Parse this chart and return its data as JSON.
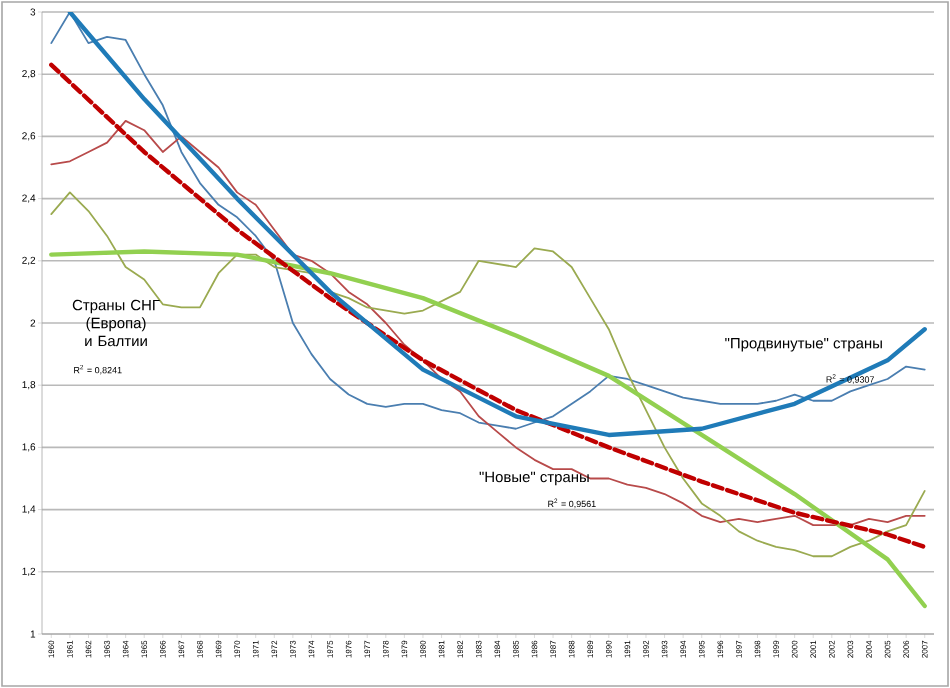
{
  "chart_data": {
    "type": "line",
    "x": [
      1960,
      1961,
      1962,
      1963,
      1964,
      1965,
      1966,
      1967,
      1968,
      1969,
      1970,
      1971,
      1972,
      1973,
      1974,
      1975,
      1976,
      1977,
      1978,
      1979,
      1980,
      1981,
      1982,
      1983,
      1984,
      1985,
      1986,
      1987,
      1988,
      1989,
      1990,
      1991,
      1992,
      1993,
      1994,
      1995,
      1996,
      1997,
      1998,
      1999,
      2000,
      2001,
      2002,
      2003,
      2004,
      2005,
      2006,
      2007
    ],
    "xlim": [
      1959.5,
      2007.5
    ],
    "xticks": [
      1960,
      1961,
      1962,
      1963,
      1964,
      1965,
      1966,
      1967,
      1968,
      1969,
      1970,
      1971,
      1972,
      1973,
      1974,
      1975,
      1976,
      1977,
      1978,
      1979,
      1980,
      1981,
      1982,
      1983,
      1984,
      1985,
      1986,
      1987,
      1988,
      1989,
      1990,
      1991,
      1992,
      1993,
      1994,
      1995,
      1996,
      1997,
      1998,
      1999,
      2000,
      2001,
      2002,
      2003,
      2004,
      2005,
      2006,
      2007
    ],
    "ylim": [
      1,
      3
    ],
    "yticks": [
      1,
      {
        "value": 1.2,
        "label": "1,2"
      },
      {
        "value": 1.4,
        "label": "1,4"
      },
      {
        "value": 1.6,
        "label": "1,6"
      },
      {
        "value": 1.8,
        "label": "1,8"
      },
      2,
      {
        "value": 2.2,
        "label": "2,2"
      },
      {
        "value": 2.4,
        "label": "2,4"
      },
      {
        "value": 2.6,
        "label": "2,6"
      },
      {
        "value": 2.8,
        "label": "2,8"
      },
      3
    ],
    "grid": "y",
    "series": [
      {
        "color": "#4a7eb0",
        "values": [
          2.9,
          3.0,
          2.9,
          2.92,
          2.91,
          2.8,
          2.7,
          2.55,
          2.45,
          2.38,
          2.34,
          2.28,
          2.2,
          2.0,
          1.9,
          1.82,
          1.77,
          1.74,
          1.73,
          1.74,
          1.74,
          1.72,
          1.71,
          1.68,
          1.67,
          1.66,
          1.68,
          1.7,
          1.74,
          1.78,
          1.83,
          1.82,
          1.8,
          1.78,
          1.76,
          1.75,
          1.74,
          1.74,
          1.74,
          1.75,
          1.77,
          1.75,
          1.75,
          1.78,
          1.8,
          1.82,
          1.86,
          1.85
        ]
      },
      {
        "color": "#b84a4a",
        "values": [
          2.51,
          2.52,
          2.55,
          2.58,
          2.65,
          2.62,
          2.55,
          2.6,
          2.55,
          2.5,
          2.42,
          2.38,
          2.3,
          2.22,
          2.2,
          2.16,
          2.1,
          2.06,
          2.0,
          1.93,
          1.88,
          1.82,
          1.78,
          1.7,
          1.65,
          1.6,
          1.56,
          1.53,
          1.53,
          1.5,
          1.5,
          1.48,
          1.47,
          1.45,
          1.42,
          1.38,
          1.36,
          1.37,
          1.36,
          1.37,
          1.38,
          1.35,
          1.35,
          1.35,
          1.37,
          1.36,
          1.38,
          1.38
        ]
      },
      {
        "color": "#9aaa50",
        "values": [
          2.35,
          2.42,
          2.36,
          2.28,
          2.18,
          2.14,
          2.06,
          2.05,
          2.05,
          2.16,
          2.22,
          2.22,
          2.18,
          2.17,
          2.16,
          2.1,
          2.08,
          2.05,
          2.04,
          2.03,
          2.04,
          2.07,
          2.1,
          2.2,
          2.19,
          2.18,
          2.24,
          2.23,
          2.18,
          2.08,
          1.98,
          1.84,
          1.72,
          1.6,
          1.5,
          1.42,
          1.38,
          1.33,
          1.3,
          1.28,
          1.27,
          1.25,
          1.25,
          1.28,
          1.3,
          1.33,
          1.35,
          1.46
        ]
      },
      {
        "color": "#92d050",
        "x": [
          1960,
          1965,
          1970,
          1975,
          1980,
          1985,
          1990,
          1995,
          2000,
          2005,
          2007
        ],
        "values": [
          2.22,
          2.23,
          2.22,
          2.16,
          2.08,
          1.96,
          1.83,
          1.64,
          1.45,
          1.24,
          1.09
        ]
      },
      {
        "color": "#c00000",
        "line_style": "dashed",
        "x": [
          1960,
          1965,
          1970,
          1975,
          1980,
          1985,
          1990,
          1995,
          2000,
          2005,
          2007
        ],
        "values": [
          2.83,
          2.55,
          2.3,
          2.08,
          1.88,
          1.72,
          1.6,
          1.49,
          1.39,
          1.32,
          1.28
        ]
      },
      {
        "color": "#1f7bb8",
        "x": [
          1961,
          1965,
          1970,
          1975,
          1980,
          1985,
          1990,
          1995,
          2000,
          2005,
          2007
        ],
        "values": [
          3.0,
          2.72,
          2.4,
          2.1,
          1.85,
          1.7,
          1.64,
          1.66,
          1.74,
          1.88,
          1.98
        ]
      }
    ],
    "annotations": [
      "Страны СНГ (Европа) и Балтии",
      "R$^{2}$ = 0,8241",
      "\"Новые\" страны",
      "R$^{2}$ = 0,9561",
      "\"Продвинутые\" страны",
      "R$^{2}$ = 0,9307"
    ]
  }
}
